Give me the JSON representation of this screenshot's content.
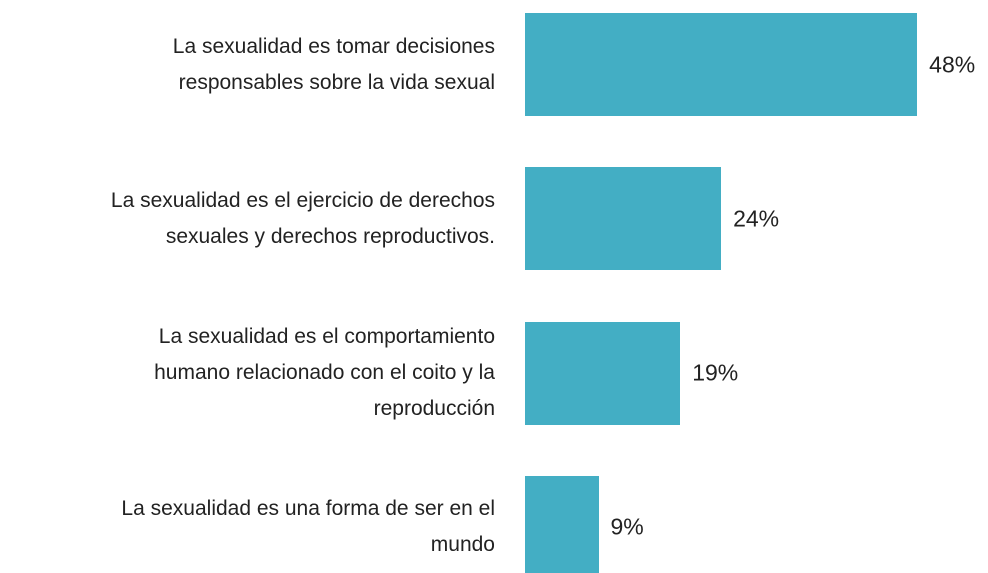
{
  "chart_data": {
    "type": "bar",
    "orientation": "horizontal",
    "categories": [
      "La sexualidad es tomar decisiones\nresponsables sobre la vida sexual",
      "La sexualidad es el ejercicio de derechos\nsexuales y derechos reproductivos.",
      "La sexualidad es el comportamiento\nhumano relacionado con el coito y la\nreproducción",
      "La sexualidad es una forma de ser en el\nmundo"
    ],
    "values": [
      48,
      24,
      19,
      9
    ],
    "value_labels": [
      "48%",
      "24%",
      "19%",
      "9%"
    ],
    "color": "#43aec4"
  }
}
